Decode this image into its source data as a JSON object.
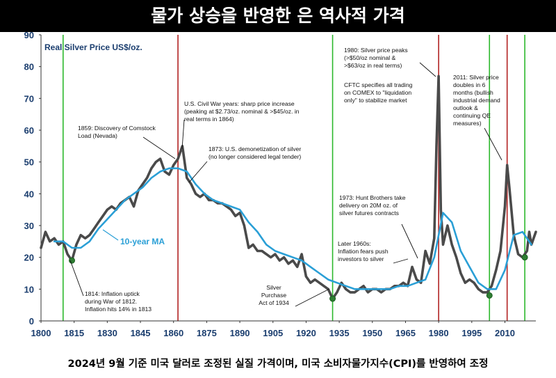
{
  "header": {
    "title": "물가 상승을 반영한 은 역사적 가격"
  },
  "footer": {
    "caption": "2024년 9월 기준 미국 달러로 조정된 실질 가격이며, 미국 소비자물가지수(CPI)를 반영하여 조정"
  },
  "colors": {
    "real_price": "#4a4a4a",
    "moving_average": "#2a9fd6",
    "peak_lines": "#b22222",
    "trough_lines": "#2db82d",
    "axis_text": "#1a3d6e"
  },
  "chart_data": {
    "type": "line",
    "title": "Real Silver Price US$/oz.",
    "xlim": [
      1800,
      2024
    ],
    "ylim": [
      0,
      90
    ],
    "yticks": [
      0,
      10,
      20,
      30,
      40,
      50,
      60,
      70,
      80,
      90
    ],
    "xticks": [
      1800,
      1815,
      1830,
      1845,
      1860,
      1875,
      1890,
      1905,
      1920,
      1935,
      1950,
      1965,
      1980,
      1995,
      2010
    ],
    "grid": false,
    "legend": "inline labels",
    "series": [
      {
        "name": "Real Silver Price US$/oz.",
        "x": [
          1800,
          1802,
          1804,
          1806,
          1808,
          1810,
          1812,
          1814,
          1816,
          1818,
          1820,
          1822,
          1824,
          1826,
          1828,
          1830,
          1832,
          1834,
          1836,
          1838,
          1840,
          1842,
          1844,
          1846,
          1848,
          1850,
          1852,
          1854,
          1856,
          1858,
          1860,
          1862,
          1864,
          1866,
          1868,
          1870,
          1872,
          1874,
          1876,
          1878,
          1880,
          1882,
          1884,
          1886,
          1888,
          1890,
          1892,
          1894,
          1896,
          1898,
          1900,
          1902,
          1904,
          1906,
          1908,
          1910,
          1912,
          1914,
          1916,
          1918,
          1920,
          1922,
          1924,
          1926,
          1928,
          1930,
          1932,
          1934,
          1936,
          1938,
          1940,
          1942,
          1944,
          1946,
          1948,
          1950,
          1952,
          1954,
          1956,
          1958,
          1960,
          1962,
          1964,
          1966,
          1968,
          1970,
          1972,
          1974,
          1976,
          1978,
          1979,
          1980,
          1981,
          1982,
          1984,
          1986,
          1988,
          1990,
          1992,
          1994,
          1996,
          1998,
          2000,
          2002,
          2004,
          2006,
          2008,
          2010,
          2011,
          2012,
          2014,
          2016,
          2018,
          2020,
          2021,
          2022,
          2024
        ],
        "y": [
          23,
          28,
          25,
          26,
          24,
          25,
          21,
          19,
          24,
          27,
          26,
          27,
          29,
          31,
          33,
          35,
          36,
          35,
          37,
          38,
          39,
          36,
          41,
          43,
          45,
          48,
          50,
          51,
          47,
          46,
          49,
          51,
          55,
          45,
          43,
          40,
          39,
          40,
          38,
          38,
          37,
          37,
          36,
          35,
          33,
          34,
          30,
          23,
          24,
          22,
          22,
          21,
          20,
          21,
          19,
          20,
          18,
          19,
          17,
          21,
          14,
          12,
          13,
          12,
          11,
          10,
          7,
          9,
          12,
          10,
          9,
          9,
          10,
          11,
          9,
          10,
          10,
          9,
          10,
          10,
          11,
          11,
          12,
          11,
          17,
          13,
          12,
          22,
          18,
          26,
          55,
          77,
          35,
          24,
          30,
          24,
          20,
          15,
          12,
          13,
          12,
          10,
          9,
          9,
          11,
          16,
          22,
          36,
          49,
          42,
          27,
          21,
          20,
          22,
          28,
          24,
          28
        ]
      },
      {
        "name": "10-year MA",
        "x": [
          1806,
          1810,
          1814,
          1818,
          1822,
          1826,
          1830,
          1834,
          1838,
          1842,
          1846,
          1850,
          1854,
          1858,
          1862,
          1866,
          1870,
          1874,
          1878,
          1882,
          1886,
          1890,
          1894,
          1898,
          1902,
          1906,
          1910,
          1914,
          1918,
          1922,
          1926,
          1930,
          1934,
          1938,
          1942,
          1946,
          1950,
          1954,
          1958,
          1962,
          1966,
          1970,
          1974,
          1978,
          1982,
          1986,
          1990,
          1994,
          1998,
          2002,
          2006,
          2010,
          2014,
          2018,
          2022
        ],
        "y": [
          25,
          25,
          23,
          23,
          25,
          29,
          32,
          35,
          38,
          40,
          42,
          45,
          47,
          48,
          48,
          47,
          43,
          40,
          38,
          37,
          36,
          35,
          31,
          28,
          24,
          22,
          21,
          20,
          19,
          17,
          15,
          13,
          12,
          11,
          10,
          10,
          10,
          10,
          10,
          11,
          11,
          12,
          13,
          20,
          34,
          31,
          22,
          17,
          12,
          10,
          10,
          16,
          27,
          28,
          24
        ]
      }
    ],
    "peak_years": [
      1862,
      1980,
      2011
    ],
    "trough_years": [
      1814,
      1932,
      2003,
      2019
    ],
    "trough_years_background": [
      1810,
      1932,
      2003,
      2019
    ],
    "inline_labels": {
      "moving_average": "10-year MA"
    },
    "annotations": [
      {
        "id": "1814",
        "lines": [
          "1814: Inflation uptick",
          "during War of 1812.",
          "Inflation hits 14% in 1813"
        ]
      },
      {
        "id": "1859",
        "lines": [
          "1859: Discovery of Comstock",
          "Load (Nevada)"
        ]
      },
      {
        "id": "civil",
        "lines": [
          "U.S. Civil War years: sharp price increase",
          "(peaking at $2.73/oz. nominal & >$45/oz. in",
          "real terms in 1864)"
        ]
      },
      {
        "id": "1873",
        "lines": [
          "1873: U.S. demonetization of silver",
          "(no longer considered legal tender)"
        ]
      },
      {
        "id": "1934",
        "lines": [
          "Silver",
          "Purchase",
          "Act of 1934"
        ]
      },
      {
        "id": "1960s",
        "lines": [
          "Later 1960s:",
          "Inflation fears push",
          "investors to silver"
        ]
      },
      {
        "id": "1973",
        "lines": [
          "1973: Hunt Brothers take",
          "delivery on 20M oz. of",
          "silver futures contracts"
        ]
      },
      {
        "id": "1980",
        "lines": [
          "1980: Silver price peaks",
          "(>$50/oz nominal &",
          ">$63/oz in real terms)"
        ]
      },
      {
        "id": "cftc",
        "lines": [
          "CFTC specifies all trading",
          "on COMEX to \"liquidation",
          "only\" to stabilize market"
        ]
      },
      {
        "id": "2011",
        "lines": [
          "2011: Silver price",
          "doubles in 6",
          "months (bullish",
          "industrial demand",
          "outlook &",
          "continuing QE",
          "measures)"
        ]
      }
    ]
  }
}
